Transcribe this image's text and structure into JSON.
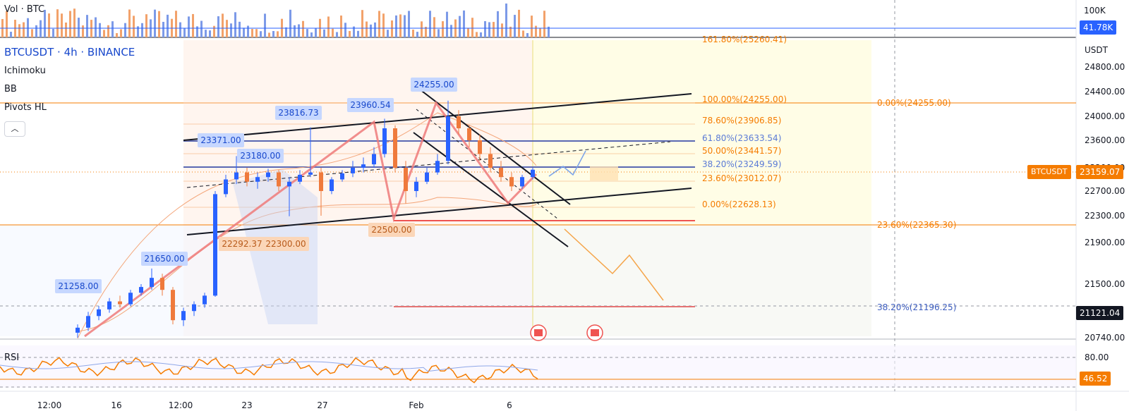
{
  "header": {
    "vol_label": "Vol · BTC",
    "symbol_title": "BTCUSDT · 4h · BINANCE",
    "indicators": [
      "Ichimoku",
      "BB",
      "Pivots HL"
    ],
    "collapse_icon": "chevron-up-icon"
  },
  "volume_axis": {
    "labels": [
      "100K"
    ],
    "current": "41.78K"
  },
  "price_axis": {
    "currency": "USDT",
    "ticks": [
      "24800.00",
      "24400.00",
      "24000.00",
      "23600.00",
      "23200.00",
      "22700.00",
      "22300.00",
      "21900.00",
      "21500.00",
      "21121.04",
      "20740.00"
    ],
    "ticks_numeric": [
      24800,
      24400,
      24000,
      23600,
      23200,
      22700,
      22300,
      21900,
      21500,
      21121.04,
      20740
    ],
    "current_price": "23159.07",
    "current_symbol": "BTCUSDT",
    "crosshair_price": "21121.04"
  },
  "rsi": {
    "label": "RSI",
    "ticks": [
      "80.00"
    ],
    "current": "46.52"
  },
  "time_axis": [
    "12:00",
    "16",
    "12:00",
    "23",
    "27",
    "Feb",
    "6"
  ],
  "chart_data": {
    "type": "candlestick",
    "title": "BTCUSDT · 4h · BINANCE",
    "ylim": [
      20740,
      25200
    ],
    "pivot_labels": [
      {
        "text": "21258.00",
        "kind": "high"
      },
      {
        "text": "21650.00",
        "kind": "high"
      },
      {
        "text": "23371.00",
        "kind": "high"
      },
      {
        "text": "23180.00",
        "kind": "high"
      },
      {
        "text": "23816.73",
        "kind": "high"
      },
      {
        "text": "23960.54",
        "kind": "high"
      },
      {
        "text": "24255.00",
        "kind": "high"
      },
      {
        "text": "22292.37",
        "kind": "low"
      },
      {
        "text": "22300.00",
        "kind": "low"
      },
      {
        "text": "22500.00",
        "kind": "low"
      }
    ],
    "fib_left": [
      {
        "text": "161.80%(25260.41)",
        "price": 25260.41
      },
      {
        "text": "100.00%(24255.00)",
        "price": 24255.0
      },
      {
        "text": "78.60%(23906.85)",
        "price": 23906.85
      },
      {
        "text": "61.80%(23633.54)",
        "price": 23633.54
      },
      {
        "text": "50.00%(23441.57)",
        "price": 23441.57
      },
      {
        "text": "38.20%(23249.59)",
        "price": 23249.59
      },
      {
        "text": "23.60%(23012.07)",
        "price": 23012.07
      },
      {
        "text": "0.00%(22628.13)",
        "price": 22628.13
      }
    ],
    "fib_right": [
      {
        "text": "0.00%(24255.00)",
        "price": 24255.0
      },
      {
        "text": "23.60%(22365.30)",
        "price": 22365.3
      },
      {
        "text": "38.20%(21196.25)",
        "price": 21196.25
      }
    ],
    "candles_approx": [
      [
        20800,
        20900,
        20740,
        20860
      ],
      [
        20860,
        21050,
        20820,
        21000
      ],
      [
        21000,
        21120,
        20950,
        21080
      ],
      [
        21080,
        21258,
        21040,
        21200
      ],
      [
        21200,
        21300,
        21100,
        21150
      ],
      [
        21150,
        21400,
        21120,
        21350
      ],
      [
        21350,
        21500,
        21300,
        21450
      ],
      [
        21450,
        21650,
        21400,
        21560
      ],
      [
        21560,
        21600,
        21300,
        21400
      ],
      [
        21400,
        21450,
        20900,
        20950
      ],
      [
        20950,
        21100,
        20880,
        21060
      ],
      [
        21060,
        21200,
        21000,
        21150
      ],
      [
        21150,
        21350,
        21100,
        21300
      ],
      [
        21300,
        22700,
        21280,
        22650
      ],
      [
        22650,
        23050,
        22600,
        22950
      ],
      [
        22950,
        23371,
        22850,
        23100
      ],
      [
        23100,
        23200,
        22800,
        22900
      ],
      [
        22900,
        23100,
        22750,
        23000
      ],
      [
        23000,
        23180,
        22900,
        23100
      ],
      [
        23100,
        23150,
        22700,
        22800
      ],
      [
        22800,
        23000,
        22292,
        22900
      ],
      [
        22900,
        23150,
        22850,
        23050
      ],
      [
        23050,
        23816,
        23000,
        23100
      ],
      [
        23100,
        23200,
        22300,
        22700
      ],
      [
        22700,
        23000,
        22650,
        22950
      ],
      [
        22950,
        23150,
        22900,
        23080
      ],
      [
        23080,
        23300,
        23000,
        23200
      ],
      [
        23200,
        23350,
        23100,
        23250
      ],
      [
        23250,
        23500,
        23200,
        23400
      ],
      [
        23400,
        23960,
        23350,
        23800
      ],
      [
        23800,
        23850,
        23100,
        23200
      ],
      [
        23200,
        23300,
        22500,
        22700
      ],
      [
        22700,
        23000,
        22600,
        22900
      ],
      [
        22900,
        23200,
        22850,
        23100
      ],
      [
        23100,
        23400,
        23050,
        23300
      ],
      [
        23300,
        24255,
        23250,
        24000
      ],
      [
        24000,
        24100,
        23700,
        23800
      ],
      [
        23800,
        23850,
        23500,
        23600
      ],
      [
        23600,
        23700,
        23300,
        23400
      ],
      [
        23400,
        23500,
        23100,
        23200
      ],
      [
        23200,
        23300,
        22900,
        23000
      ],
      [
        23000,
        23100,
        22700,
        22800
      ],
      [
        22800,
        23050,
        22750,
        23000
      ],
      [
        23000,
        23200,
        22950,
        23159
      ]
    ]
  }
}
